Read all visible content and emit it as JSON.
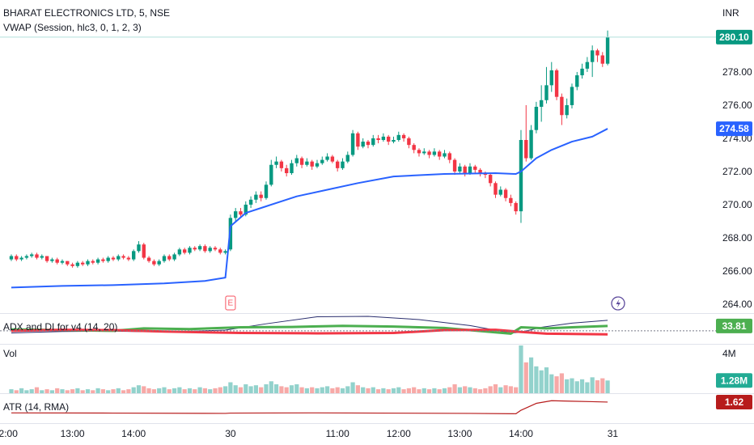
{
  "header": {
    "title": "BHARAT ELECTRONICS LTD, 5, NSE",
    "indicator": "VWAP (Session, hlc3, 0, 1, 2, 3)",
    "currency": "INR"
  },
  "chart_data": [
    {
      "type": "candlestick",
      "up_color": "#089981",
      "down_color": "#f23645",
      "xlim": [
        -2.22,
        134.29
      ],
      "ylim": [
        263.46,
        282.34
      ],
      "xticks": [
        {
          "value": -0.6,
          "label": "2:00"
        },
        {
          "value": 12,
          "label": "13:00"
        },
        {
          "value": 24,
          "label": "14:00"
        },
        {
          "value": 43,
          "label": "30"
        },
        {
          "value": 64,
          "label": "11:00"
        },
        {
          "value": 76,
          "label": "12:00"
        },
        {
          "value": 88,
          "label": "13:00"
        },
        {
          "value": 100,
          "label": "14:00"
        },
        {
          "value": 118,
          "label": "31"
        }
      ],
      "yticks": [
        {
          "value": 264,
          "label": "264.00"
        },
        {
          "value": 266,
          "label": "266.00"
        },
        {
          "value": 268,
          "label": "268.00"
        },
        {
          "value": 270,
          "label": "270.00"
        },
        {
          "value": 272,
          "label": "272.00"
        },
        {
          "value": 274,
          "label": "274.00"
        },
        {
          "value": 276,
          "label": "276.00"
        },
        {
          "value": 278,
          "label": "278.00"
        }
      ],
      "last_price_label": "280.10",
      "ohlc": [
        [
          266.7,
          267.0,
          266.6,
          266.9
        ],
        [
          266.9,
          267.0,
          266.6,
          266.7
        ],
        [
          266.7,
          266.9,
          266.6,
          266.8
        ],
        [
          266.8,
          267.0,
          266.7,
          266.9
        ],
        [
          266.9,
          267.1,
          266.8,
          267.0
        ],
        [
          267.0,
          267.1,
          266.7,
          266.8
        ],
        [
          266.8,
          267.0,
          266.7,
          266.9
        ],
        [
          266.9,
          266.9,
          266.5,
          266.6
        ],
        [
          266.6,
          266.8,
          266.5,
          266.7
        ],
        [
          266.7,
          266.8,
          266.4,
          266.5
        ],
        [
          266.5,
          266.7,
          266.4,
          266.6
        ],
        [
          266.6,
          266.6,
          266.3,
          266.4
        ],
        [
          266.4,
          266.5,
          266.2,
          266.3
        ],
        [
          266.3,
          266.6,
          266.2,
          266.5
        ],
        [
          266.5,
          266.6,
          266.3,
          266.4
        ],
        [
          266.4,
          266.7,
          266.3,
          266.6
        ],
        [
          266.6,
          266.7,
          266.4,
          266.5
        ],
        [
          266.5,
          266.8,
          266.4,
          266.7
        ],
        [
          266.7,
          266.8,
          266.5,
          266.6
        ],
        [
          266.6,
          266.9,
          266.5,
          266.8
        ],
        [
          266.8,
          266.9,
          266.6,
          266.7
        ],
        [
          266.7,
          267.0,
          266.6,
          266.9
        ],
        [
          266.9,
          267.0,
          266.7,
          266.8
        ],
        [
          266.8,
          266.9,
          266.6,
          266.7
        ],
        [
          266.7,
          267.3,
          266.6,
          267.2
        ],
        [
          267.2,
          267.8,
          267.1,
          267.6
        ],
        [
          267.6,
          267.7,
          266.7,
          266.8
        ],
        [
          266.8,
          266.9,
          266.5,
          266.6
        ],
        [
          266.6,
          266.7,
          266.3,
          266.4
        ],
        [
          266.4,
          266.7,
          266.3,
          266.6
        ],
        [
          266.6,
          267.0,
          266.5,
          266.9
        ],
        [
          266.9,
          267.0,
          266.6,
          266.7
        ],
        [
          266.7,
          267.1,
          266.6,
          267.0
        ],
        [
          267.0,
          267.4,
          266.9,
          267.3
        ],
        [
          267.3,
          267.4,
          267.0,
          267.1
        ],
        [
          267.1,
          267.5,
          267.0,
          267.4
        ],
        [
          267.4,
          267.5,
          267.2,
          267.3
        ],
        [
          267.3,
          267.6,
          267.2,
          267.5
        ],
        [
          267.5,
          267.6,
          267.1,
          267.2
        ],
        [
          267.2,
          267.5,
          267.1,
          267.4
        ],
        [
          267.4,
          267.5,
          267.2,
          267.3
        ],
        [
          267.3,
          267.4,
          267.0,
          267.1
        ],
        [
          267.1,
          267.3,
          267.0,
          267.2
        ],
        [
          267.3,
          269.4,
          267.2,
          269.2
        ],
        [
          269.2,
          269.8,
          269.0,
          269.6
        ],
        [
          269.6,
          269.8,
          269.2,
          269.4
        ],
        [
          269.4,
          270.2,
          269.3,
          270.0
        ],
        [
          270.0,
          270.5,
          269.8,
          270.3
        ],
        [
          270.3,
          270.8,
          270.1,
          270.6
        ],
        [
          270.6,
          270.8,
          270.2,
          270.4
        ],
        [
          270.4,
          271.4,
          270.3,
          271.2
        ],
        [
          271.2,
          272.7,
          271.1,
          272.4
        ],
        [
          272.4,
          272.9,
          272.2,
          272.6
        ],
        [
          272.6,
          272.7,
          272.0,
          272.2
        ],
        [
          272.2,
          272.4,
          271.7,
          271.9
        ],
        [
          271.9,
          272.7,
          271.8,
          272.5
        ],
        [
          272.5,
          273.0,
          272.3,
          272.8
        ],
        [
          272.8,
          272.9,
          272.2,
          272.4
        ],
        [
          272.4,
          272.8,
          272.3,
          272.6
        ],
        [
          272.6,
          272.7,
          272.1,
          272.3
        ],
        [
          272.3,
          272.7,
          272.2,
          272.5
        ],
        [
          272.5,
          272.9,
          272.4,
          272.7
        ],
        [
          272.7,
          273.1,
          272.6,
          272.9
        ],
        [
          272.9,
          273.0,
          272.5,
          272.6
        ],
        [
          272.6,
          272.7,
          272.0,
          272.2
        ],
        [
          272.2,
          272.8,
          272.1,
          272.6
        ],
        [
          272.6,
          273.2,
          272.5,
          273.0
        ],
        [
          273.0,
          274.5,
          272.9,
          274.3
        ],
        [
          274.3,
          274.4,
          273.3,
          273.5
        ],
        [
          273.5,
          274.0,
          273.4,
          273.8
        ],
        [
          273.8,
          273.9,
          273.4,
          273.6
        ],
        [
          273.6,
          274.2,
          273.5,
          274.0
        ],
        [
          274.0,
          274.2,
          273.7,
          273.9
        ],
        [
          273.9,
          274.3,
          273.8,
          274.1
        ],
        [
          274.1,
          274.2,
          273.6,
          273.8
        ],
        [
          273.8,
          274.1,
          273.7,
          273.9
        ],
        [
          273.9,
          274.4,
          273.8,
          274.2
        ],
        [
          274.2,
          274.3,
          273.8,
          274.0
        ],
        [
          274.0,
          274.1,
          273.4,
          273.6
        ],
        [
          273.6,
          273.7,
          273.1,
          273.3
        ],
        [
          273.3,
          273.4,
          272.9,
          273.1
        ],
        [
          273.1,
          273.4,
          273.0,
          273.2
        ],
        [
          273.2,
          273.3,
          272.8,
          273.0
        ],
        [
          273.0,
          273.4,
          272.9,
          273.2
        ],
        [
          273.2,
          273.3,
          272.7,
          272.9
        ],
        [
          272.9,
          273.3,
          272.8,
          273.1
        ],
        [
          273.1,
          273.2,
          272.5,
          272.7
        ],
        [
          272.7,
          272.8,
          271.8,
          272.0
        ],
        [
          272.0,
          272.5,
          271.9,
          272.3
        ],
        [
          272.3,
          272.4,
          271.7,
          271.9
        ],
        [
          271.9,
          272.5,
          271.8,
          272.3
        ],
        [
          272.3,
          272.4,
          271.9,
          272.1
        ],
        [
          272.1,
          272.2,
          271.7,
          271.9
        ],
        [
          271.9,
          272.0,
          271.6,
          271.8
        ],
        [
          271.8,
          271.9,
          271.1,
          271.3
        ],
        [
          271.3,
          271.4,
          270.4,
          270.6
        ],
        [
          270.6,
          271.1,
          270.5,
          270.9
        ],
        [
          270.9,
          271.0,
          270.2,
          270.4
        ],
        [
          270.4,
          270.6,
          269.9,
          270.1
        ],
        [
          270.1,
          270.2,
          269.4,
          269.6
        ],
        [
          269.6,
          274.5,
          268.9,
          273.9
        ],
        [
          273.9,
          276.0,
          272.6,
          272.8
        ],
        [
          272.8,
          274.8,
          272.7,
          274.5
        ],
        [
          274.5,
          276.2,
          274.3,
          275.9
        ],
        [
          275.9,
          277.2,
          275.0,
          276.3
        ],
        [
          276.3,
          278.3,
          276.1,
          277.2
        ],
        [
          277.2,
          278.6,
          276.8,
          278.1
        ],
        [
          278.1,
          278.2,
          276.3,
          276.5
        ],
        [
          276.5,
          276.7,
          274.8,
          275.4
        ],
        [
          275.4,
          276.4,
          275.2,
          276.0
        ],
        [
          276.0,
          277.3,
          275.8,
          277.1
        ],
        [
          277.1,
          278.0,
          276.9,
          277.8
        ],
        [
          277.8,
          278.5,
          277.6,
          278.2
        ],
        [
          278.2,
          278.9,
          278.0,
          278.6
        ],
        [
          278.6,
          279.6,
          277.7,
          279.3
        ],
        [
          279.3,
          279.4,
          278.6,
          279.0
        ],
        [
          279.0,
          279.2,
          278.3,
          278.5
        ],
        [
          278.5,
          280.5,
          278.4,
          280.1
        ]
      ],
      "overlays": [
        {
          "color": "#2962ff",
          "x": [
            0,
            10,
            20,
            30,
            38,
            42,
            43,
            46,
            50,
            56,
            62,
            68,
            75,
            85,
            95,
            99,
            100,
            103,
            106,
            110,
            114,
            117
          ],
          "values": [
            265.0,
            265.1,
            265.15,
            265.25,
            265.4,
            265.6,
            268.7,
            269.5,
            269.9,
            270.5,
            270.9,
            271.3,
            271.7,
            271.85,
            271.9,
            271.85,
            272.0,
            272.8,
            273.3,
            273.8,
            274.1,
            274.58
          ]
        }
      ],
      "markers": [
        {
          "x": 43,
          "label": "E"
        }
      ]
    },
    {
      "type": "line",
      "title": "ADX and DI for v4 (14, 20)",
      "ylim": [
        -17,
        68
      ],
      "level": 20,
      "series": [
        {
          "color": "#2a2e6e",
          "x": [
            0,
            10,
            20,
            30,
            42,
            50,
            60,
            70,
            80,
            90,
            98,
            100,
            104,
            110,
            117
          ],
          "values": [
            14,
            18,
            19,
            17,
            22,
            40,
            60,
            61,
            52,
            35,
            14,
            16,
            30,
            42,
            50
          ]
        },
        {
          "color": "#4caf50",
          "x": [
            0,
            10,
            20,
            26,
            35,
            45,
            55,
            65,
            75,
            85,
            98,
            100,
            105,
            110,
            117
          ],
          "values": [
            24,
            22,
            20,
            27,
            25,
            30,
            31,
            34,
            32,
            28,
            12,
            30,
            27,
            30,
            33.81
          ]
        },
        {
          "color": "#f23645",
          "x": [
            0,
            10,
            20,
            30,
            45,
            60,
            75,
            85,
            95,
            100,
            105,
            117
          ],
          "values": [
            20,
            23,
            22,
            18,
            14,
            13,
            14,
            22,
            23,
            17,
            12,
            10
          ]
        }
      ]
    },
    {
      "type": "bar",
      "title": "Vol",
      "ylim": [
        0,
        4880000
      ],
      "yticks": [
        {
          "value": 4000000,
          "label": "4M"
        }
      ],
      "last_label": "1.28M",
      "up_color": "#26a69a",
      "down_color": "#ef5350",
      "values": [
        400000.0,
        300000.0,
        500000.0,
        300000.0,
        400000.0,
        600000.0,
        300000.0,
        400000.0,
        300000.0,
        500000.0,
        400000.0,
        300000.0,
        400000.0,
        500000.0,
        300000.0,
        400000.0,
        300000.0,
        500000.0,
        400000.0,
        300000.0,
        400000.0,
        500000.0,
        300000.0,
        400000.0,
        600000.0,
        800000.0,
        700000.0,
        500000.0,
        400000.0,
        500000.0,
        600000.0,
        400000.0,
        500000.0,
        600000.0,
        400000.0,
        500000.0,
        400000.0,
        600000.0,
        500000.0,
        400000.0,
        500000.0,
        600000.0,
        700000.0,
        1100000.0,
        800000.0,
        600000.0,
        900000.0,
        700000.0,
        800000.0,
        600000.0,
        900000.0,
        1200000.0,
        900000.0,
        700000.0,
        600000.0,
        800000.0,
        900000.0,
        600000.0,
        500000.0,
        600000.0,
        500000.0,
        600000.0,
        700000.0,
        500000.0,
        600000.0,
        500000.0,
        700000.0,
        1100000.0,
        800000.0,
        600000.0,
        500000.0,
        600000.0,
        400000.0,
        500000.0,
        400000.0,
        500000.0,
        600000.0,
        400000.0,
        500000.0,
        600000.0,
        400000.0,
        500000.0,
        400000.0,
        500000.0,
        400000.0,
        500000.0,
        600000.0,
        900000.0,
        600000.0,
        700000.0,
        600000.0,
        500000.0,
        400000.0,
        500000.0,
        700000.0,
        900000.0,
        600000.0,
        800000.0,
        700000.0,
        600000.0,
        4800000.0,
        3100000.0,
        3600000.0,
        2700000.0,
        2300000.0,
        2600000.0,
        1900000.0,
        1700000.0,
        2000000.0,
        1400000.0,
        1500000.0,
        1200000.0,
        1400000.0,
        1100000.0,
        1600000.0,
        1300000.0,
        1500000.0,
        1280000.0
      ]
    },
    {
      "type": "line",
      "title": "ATR (14, RMA)",
      "ylim": [
        -0.37,
        2.38
      ],
      "series": [
        {
          "color": "#b71c1c",
          "x": [
            0,
            20,
            42,
            43,
            60,
            90,
            99,
            100,
            103,
            106,
            110,
            114,
            117
          ],
          "values": [
            0.6,
            0.58,
            0.55,
            0.58,
            0.6,
            0.55,
            0.52,
            0.85,
            1.5,
            1.75,
            1.7,
            1.66,
            1.62
          ]
        }
      ]
    }
  ]
}
